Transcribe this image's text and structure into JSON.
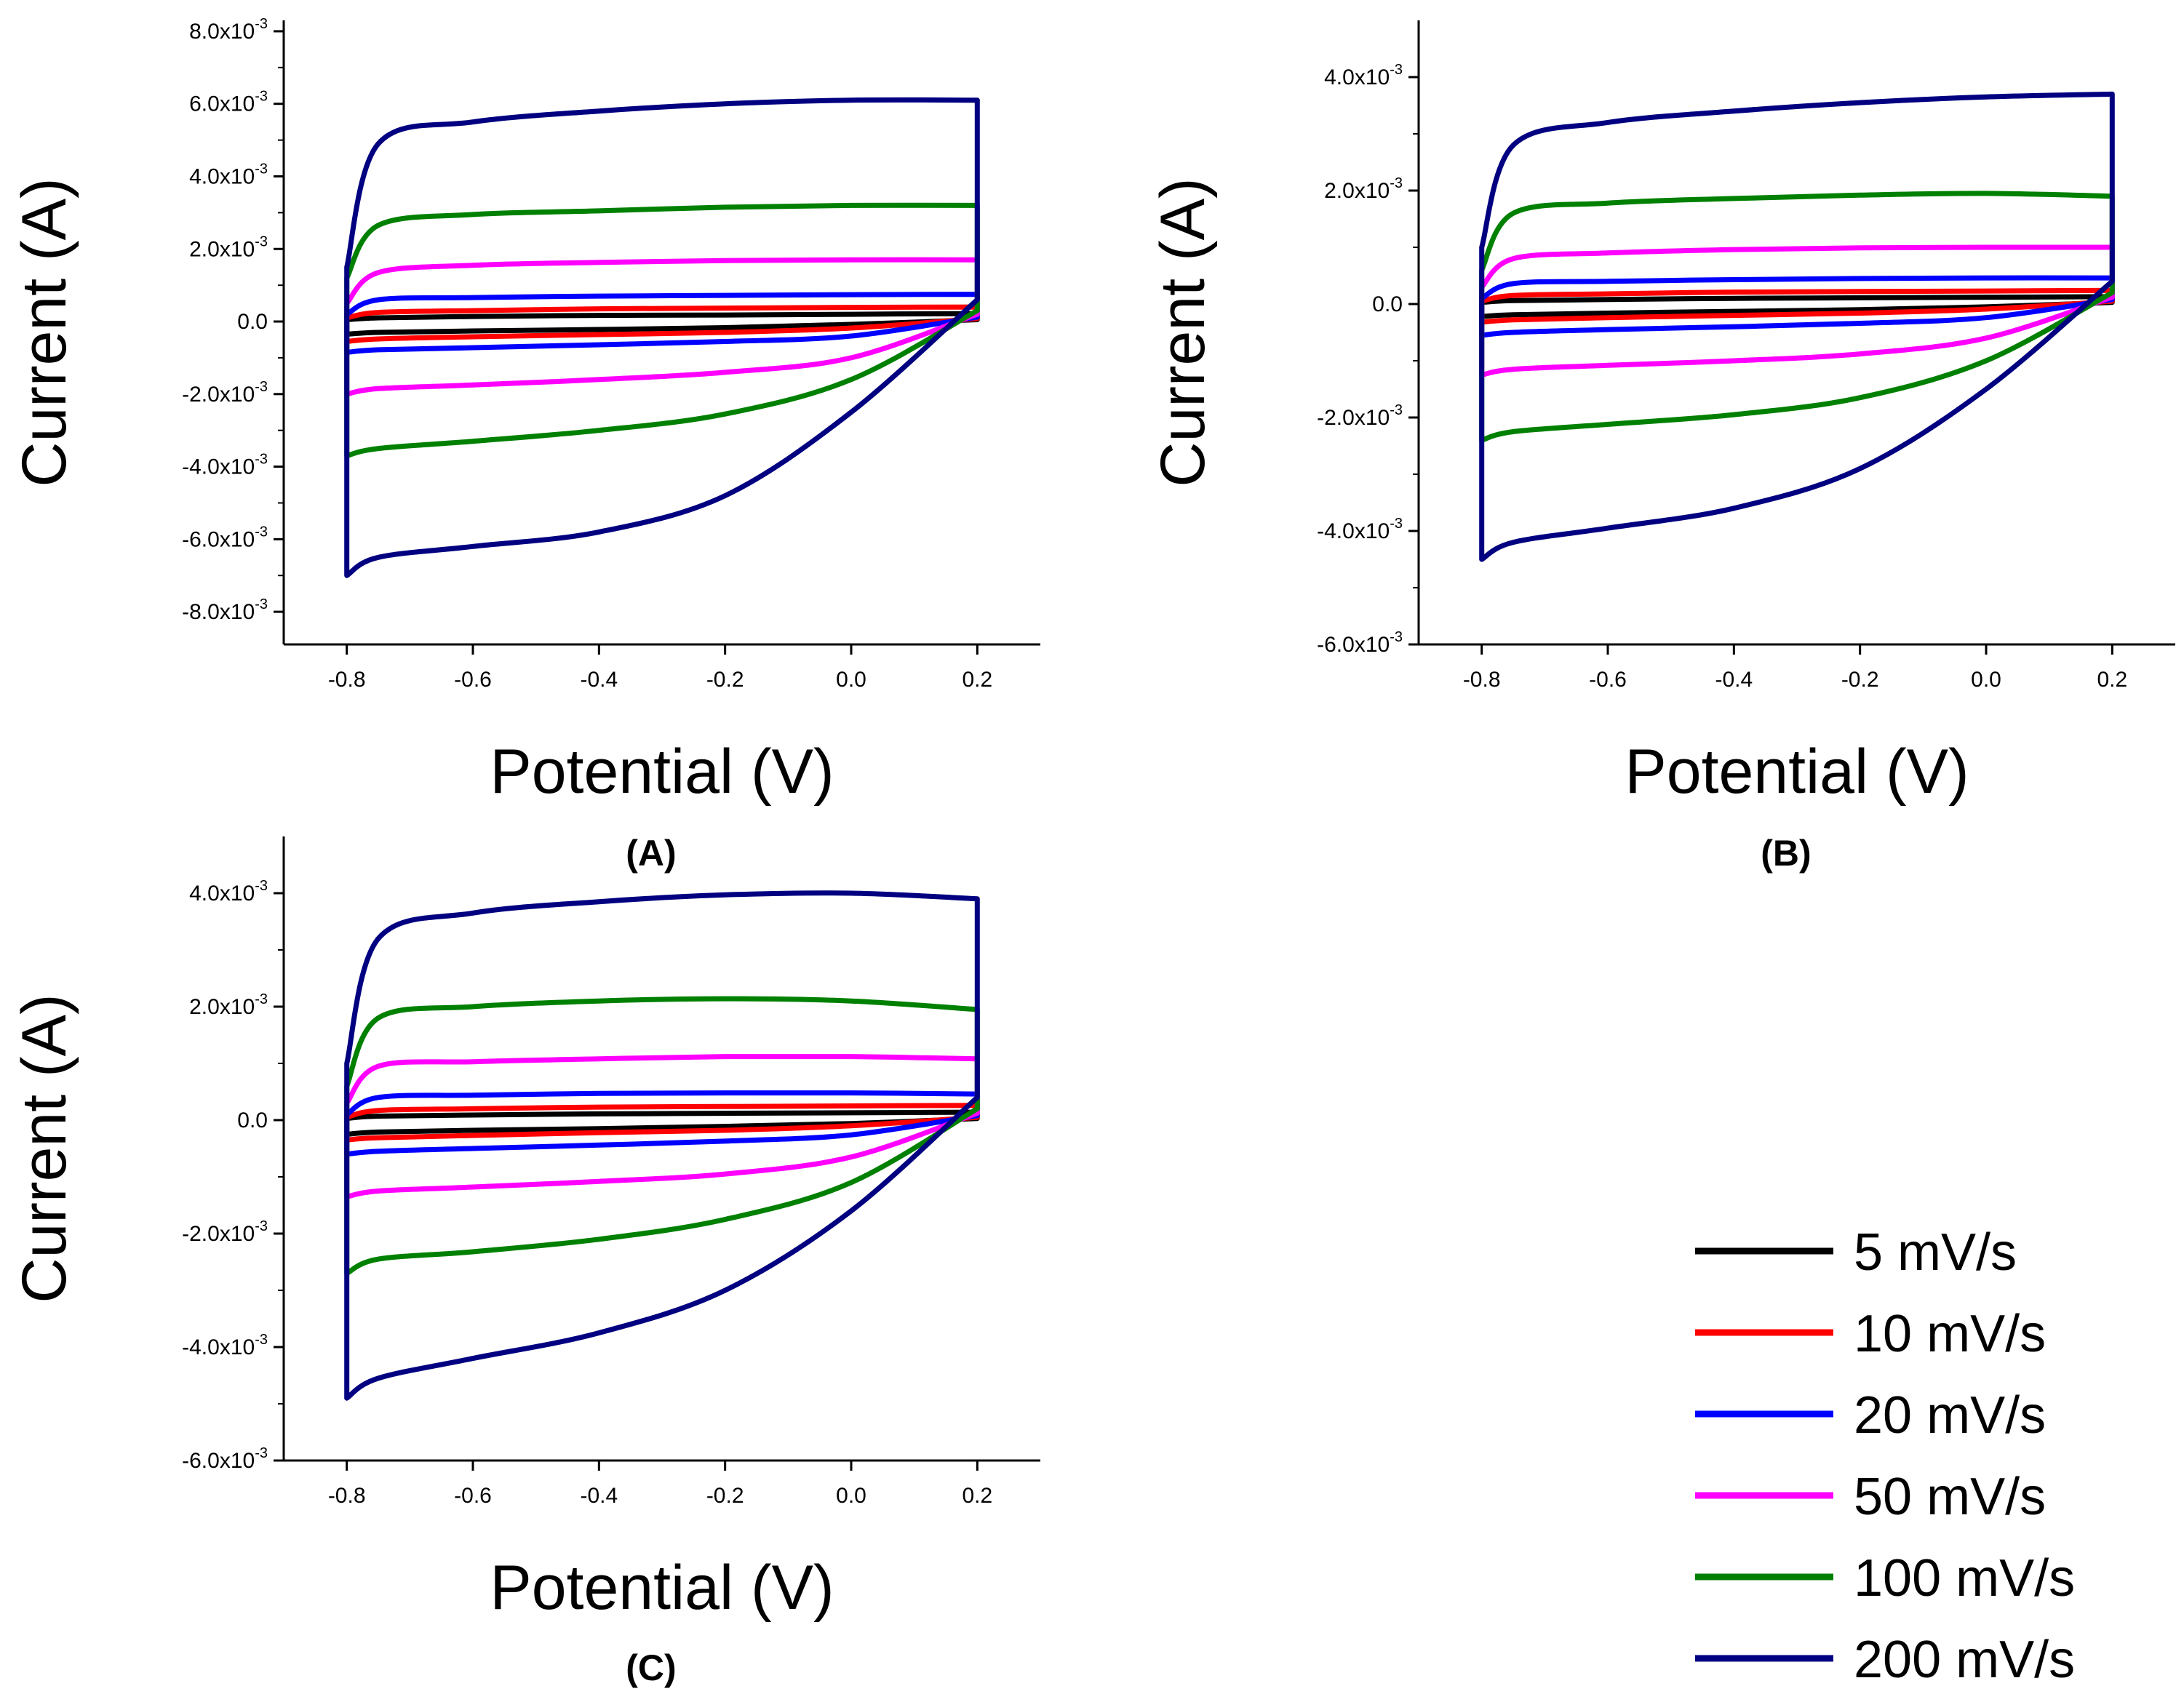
{
  "chart_data": [
    {
      "id": "A",
      "type": "line",
      "panel_label": "(A)",
      "xlabel": "Potential (V)",
      "ylabel": "Current (A)",
      "xlim": [
        -0.9,
        0.3
      ],
      "ylim": [
        -0.0089,
        0.0083
      ],
      "xticks": [
        -0.8,
        -0.6,
        -0.4,
        -0.2,
        0.0,
        0.2
      ],
      "xtick_labels": [
        "-0.8",
        "-0.6",
        "-0.4",
        "-0.2",
        "0.0",
        "0.2"
      ],
      "yticks": [
        {
          "v": 0.008,
          "m": "8.0x10",
          "e": "-3"
        },
        {
          "v": 0.006,
          "m": "6.0x10",
          "e": "-3"
        },
        {
          "v": 0.004,
          "m": "4.0x10",
          "e": "-3"
        },
        {
          "v": 0.002,
          "m": "2.0x10",
          "e": "-3"
        },
        {
          "v": 0.0,
          "m": "0.0",
          "e": ""
        },
        {
          "v": -0.002,
          "m": "-2.0x10",
          "e": "-3"
        },
        {
          "v": -0.004,
          "m": "-4.0x10",
          "e": "-3"
        },
        {
          "v": -0.006,
          "m": "-6.0x10",
          "e": "-3"
        },
        {
          "v": -0.008,
          "m": "-8.0x10",
          "e": "-3"
        }
      ],
      "series": [
        {
          "name": "5 mV/s",
          "color": "#000000",
          "upper": [
            5e-05,
            0.0001,
            0.00014,
            0.00017,
            0.00018,
            0.0002,
            0.00022
          ],
          "lower": [
            -0.00035,
            -0.0003,
            -0.00026,
            -0.00022,
            -0.00017,
            -8e-05,
            5e-05
          ]
        },
        {
          "name": "10 mV/s",
          "color": "#ff0000",
          "upper": [
            0.0001,
            0.00025,
            0.0003,
            0.00035,
            0.00037,
            0.00039,
            0.0004
          ],
          "lower": [
            -0.00055,
            -0.00048,
            -0.00042,
            -0.00036,
            -0.0003,
            -0.00018,
            8e-05
          ]
        },
        {
          "name": "20 mV/s",
          "color": "#0000ff",
          "upper": [
            0.0002,
            0.0006,
            0.00066,
            0.0007,
            0.00072,
            0.00074,
            0.00075
          ],
          "lower": [
            -0.00085,
            -0.00078,
            -0.00072,
            -0.00064,
            -0.00055,
            -0.0004,
            0.00012
          ]
        },
        {
          "name": "50 mV/s",
          "color": "#ff00ff",
          "upper": [
            0.0005,
            0.00135,
            0.00155,
            0.00163,
            0.00168,
            0.0017,
            0.0017
          ],
          "lower": [
            -0.002,
            -0.00185,
            -0.00175,
            -0.0016,
            -0.0014,
            -0.001,
            0.0002
          ]
        },
        {
          "name": "100 mV/s",
          "color": "#008000",
          "upper": [
            0.0012,
            0.00265,
            0.00295,
            0.00305,
            0.00315,
            0.0032,
            0.0032
          ],
          "lower": [
            -0.0037,
            -0.0035,
            -0.0033,
            -0.003,
            -0.00255,
            -0.0016,
            0.0003
          ]
        },
        {
          "name": "200 mV/s",
          "color": "#000080",
          "upper": [
            0.0015,
            0.0049,
            0.0055,
            0.0058,
            0.006,
            0.0061,
            0.0061
          ],
          "lower": [
            -0.007,
            -0.0065,
            -0.0062,
            -0.0058,
            -0.0048,
            -0.0025,
            0.0006
          ]
        }
      ]
    },
    {
      "id": "B",
      "type": "line",
      "panel_label": "(B)",
      "xlabel": "Potential (V)",
      "ylabel": "Current (A)",
      "xlim": [
        -0.9,
        0.3
      ],
      "ylim": [
        -0.006,
        0.005
      ],
      "xticks": [
        -0.8,
        -0.6,
        -0.4,
        -0.2,
        0.0,
        0.2
      ],
      "xtick_labels": [
        "-0.8",
        "-0.6",
        "-0.4",
        "-0.2",
        "0.0",
        "0.2"
      ],
      "yticks": [
        {
          "v": 0.004,
          "m": "4.0x10",
          "e": "-3"
        },
        {
          "v": 0.002,
          "m": "2.0x10",
          "e": "-3"
        },
        {
          "v": 0.0,
          "m": "0.0",
          "e": ""
        },
        {
          "v": -0.002,
          "m": "-2.0x10",
          "e": "-3"
        },
        {
          "v": -0.004,
          "m": "-4.0x10",
          "e": "-3"
        },
        {
          "v": -0.006,
          "m": "-6.0x10",
          "e": "-3"
        }
      ],
      "series": [
        {
          "name": "5 mV/s",
          "color": "#000000",
          "upper": [
            3e-05,
            6e-05,
            8e-05,
            0.0001,
            0.00011,
            0.00012,
            0.00013
          ],
          "lower": [
            -0.00022,
            -0.00019,
            -0.00016,
            -0.00013,
            -0.0001,
            -5e-05,
            3e-05
          ]
        },
        {
          "name": "10 mV/s",
          "color": "#ff0000",
          "upper": [
            5e-05,
            0.00015,
            0.00018,
            0.00021,
            0.00022,
            0.00023,
            0.00024
          ],
          "lower": [
            -0.00032,
            -0.00028,
            -0.00024,
            -0.0002,
            -0.00016,
            -9e-05,
            5e-05
          ]
        },
        {
          "name": "20 mV/s",
          "color": "#0000ff",
          "upper": [
            0.0001,
            0.00036,
            0.0004,
            0.00043,
            0.00045,
            0.00046,
            0.00046
          ],
          "lower": [
            -0.00055,
            -0.0005,
            -0.00045,
            -0.0004,
            -0.00034,
            -0.00024,
            8e-05
          ]
        },
        {
          "name": "50 mV/s",
          "color": "#ff00ff",
          "upper": [
            0.0003,
            0.0008,
            0.0009,
            0.00096,
            0.00099,
            0.001,
            0.001
          ],
          "lower": [
            -0.00125,
            -0.00115,
            -0.00108,
            -0.001,
            -0.00088,
            -0.0006,
            0.00012
          ]
        },
        {
          "name": "100 mV/s",
          "color": "#008000",
          "upper": [
            0.0006,
            0.0016,
            0.00178,
            0.00186,
            0.00192,
            0.00195,
            0.0019
          ],
          "lower": [
            -0.0024,
            -0.00225,
            -0.00212,
            -0.00195,
            -0.00165,
            -0.001,
            0.0002
          ]
        },
        {
          "name": "200 mV/s",
          "color": "#000080",
          "upper": [
            0.001,
            0.0028,
            0.0032,
            0.0034,
            0.00355,
            0.00365,
            0.0037
          ],
          "lower": [
            -0.0045,
            -0.0042,
            -0.00395,
            -0.0036,
            -0.0029,
            -0.0015,
            0.0004
          ]
        }
      ]
    },
    {
      "id": "C",
      "type": "line",
      "panel_label": "(C)",
      "xlabel": "Potential (V)",
      "ylabel": "Current (A)",
      "xlim": [
        -0.9,
        0.3
      ],
      "ylim": [
        -0.006,
        0.005
      ],
      "xticks": [
        -0.8,
        -0.6,
        -0.4,
        -0.2,
        0.0,
        0.2
      ],
      "xtick_labels": [
        "-0.8",
        "-0.6",
        "-0.4",
        "-0.2",
        "0.0",
        "0.2"
      ],
      "yticks": [
        {
          "v": 0.004,
          "m": "4.0x10",
          "e": "-3"
        },
        {
          "v": 0.002,
          "m": "2.0x10",
          "e": "-3"
        },
        {
          "v": 0.0,
          "m": "0.0",
          "e": ""
        },
        {
          "v": -0.002,
          "m": "-2.0x10",
          "e": "-3"
        },
        {
          "v": -0.004,
          "m": "-4.0x10",
          "e": "-3"
        },
        {
          "v": -0.006,
          "m": "-6.0x10",
          "e": "-3"
        }
      ],
      "series": [
        {
          "name": "5 mV/s",
          "color": "#000000",
          "upper": [
            3e-05,
            7e-05,
            9e-05,
            0.00011,
            0.00012,
            0.00013,
            0.00014
          ],
          "lower": [
            -0.00025,
            -0.00021,
            -0.00018,
            -0.00015,
            -0.00011,
            -6e-05,
            3e-05
          ]
        },
        {
          "name": "10 mV/s",
          "color": "#ff0000",
          "upper": [
            5e-05,
            0.00017,
            0.0002,
            0.00023,
            0.00024,
            0.00025,
            0.00026
          ],
          "lower": [
            -0.00035,
            -0.00031,
            -0.00027,
            -0.00022,
            -0.00018,
            -0.0001,
            5e-05
          ]
        },
        {
          "name": "20 mV/s",
          "color": "#0000ff",
          "upper": [
            0.0001,
            0.0004,
            0.00044,
            0.00047,
            0.00048,
            0.00048,
            0.00046
          ],
          "lower": [
            -0.0006,
            -0.00055,
            -0.0005,
            -0.00044,
            -0.00037,
            -0.00026,
            8e-05
          ]
        },
        {
          "name": "50 mV/s",
          "color": "#ff00ff",
          "upper": [
            0.0003,
            0.00095,
            0.00103,
            0.00108,
            0.00112,
            0.00112,
            0.00108
          ],
          "lower": [
            -0.00135,
            -0.00125,
            -0.00118,
            -0.00108,
            -0.00095,
            -0.00065,
            0.00012
          ]
        },
        {
          "name": "100 mV/s",
          "color": "#008000",
          "upper": [
            0.0006,
            0.0018,
            0.002,
            0.0021,
            0.00214,
            0.0021,
            0.00195
          ],
          "lower": [
            -0.0027,
            -0.00245,
            -0.00232,
            -0.0021,
            -0.00175,
            -0.0011,
            0.0002
          ]
        },
        {
          "name": "200 mV/s",
          "color": "#000080",
          "upper": [
            0.001,
            0.0032,
            0.00365,
            0.00385,
            0.00397,
            0.004,
            0.0039
          ],
          "lower": [
            -0.0049,
            -0.00455,
            -0.0042,
            -0.00375,
            -0.003,
            -0.0016,
            0.0004
          ]
        }
      ]
    }
  ],
  "legend": {
    "entries": [
      {
        "label": "5 mV/s",
        "color": "#000000"
      },
      {
        "label": "10 mV/s",
        "color": "#ff0000"
      },
      {
        "label": "20 mV/s",
        "color": "#0000ff"
      },
      {
        "label": "50 mV/s",
        "color": "#ff00ff"
      },
      {
        "label": "100 mV/s",
        "color": "#008000"
      },
      {
        "label": "200 mV/s",
        "color": "#000080"
      }
    ]
  }
}
